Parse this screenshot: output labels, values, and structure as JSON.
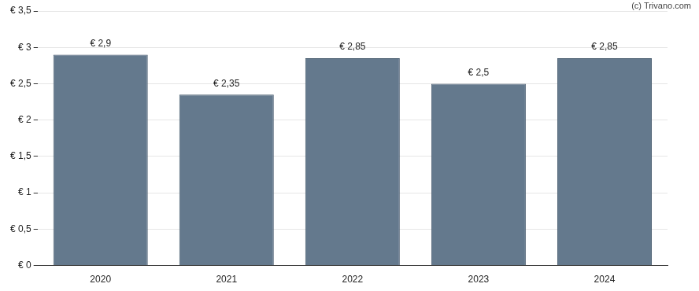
{
  "chart_data": {
    "type": "bar",
    "annotations": [
      "(c) Trivano.com"
    ],
    "categories": [
      "2020",
      "2021",
      "2022",
      "2023",
      "2024"
    ],
    "values": [
      2.9,
      2.35,
      2.85,
      2.5,
      2.85
    ],
    "value_labels": [
      "€ 2,9",
      "€ 2,35",
      "€ 2,85",
      "€ 2,5",
      "€ 2,85"
    ],
    "data_labels": true,
    "color": "#64798d",
    "ylim": [
      0,
      3.5
    ],
    "yticks": [
      {
        "value": 0,
        "label": "€ 0"
      },
      {
        "value": 0.5,
        "label": "€ 0,5"
      },
      {
        "value": 1,
        "label": "€ 1"
      },
      {
        "value": 1.5,
        "label": "€ 1,5"
      },
      {
        "value": 2,
        "label": "€ 2"
      },
      {
        "value": 2.5,
        "label": "€ 2,5"
      },
      {
        "value": 3,
        "label": "€ 3"
      },
      {
        "value": 3.5,
        "label": "€ 3,5"
      }
    ],
    "grid": true
  }
}
